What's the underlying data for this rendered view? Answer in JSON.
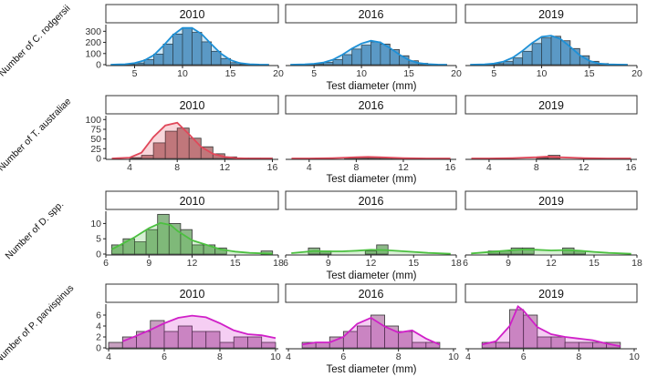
{
  "figure": {
    "xlabel": "Test diameter (mm)"
  },
  "chart_data": [
    {
      "type": "bar",
      "ylabel": "Number of C. rodgersii",
      "xlabel": "Test diameter (mm)",
      "xlim": [
        2,
        20
      ],
      "xticks": [
        5,
        10,
        15,
        20
      ],
      "ylim": [
        0,
        360
      ],
      "yticks": [
        0,
        100,
        200,
        300
      ],
      "color": "#1E90D6",
      "fill": "#6C9CC0",
      "bin_width": 1,
      "panels": [
        {
          "year": "2010",
          "bin_starts": [
            3,
            4,
            5,
            6,
            7,
            8,
            9,
            10,
            11,
            12,
            13,
            14,
            15,
            16,
            17,
            18
          ],
          "values": [
            2,
            5,
            15,
            45,
            95,
            185,
            275,
            330,
            290,
            205,
            120,
            55,
            18,
            6,
            2,
            1
          ],
          "density_x": [
            2.5,
            4,
            5,
            6,
            7,
            8,
            9,
            10,
            11,
            12,
            13,
            14,
            15,
            16,
            17,
            18,
            19
          ],
          "density_y": [
            0,
            4,
            14,
            38,
            85,
            170,
            265,
            330,
            330,
            275,
            185,
            100,
            42,
            14,
            4,
            1,
            0
          ]
        },
        {
          "year": "2016",
          "bin_starts": [
            3,
            4,
            5,
            6,
            7,
            8,
            9,
            10,
            11,
            12,
            13,
            14,
            15,
            16,
            17,
            18
          ],
          "values": [
            1,
            3,
            8,
            20,
            45,
            90,
            140,
            175,
            205,
            185,
            135,
            80,
            35,
            12,
            4,
            1
          ],
          "density_x": [
            2.5,
            4,
            5,
            6,
            7,
            8,
            9,
            10,
            11,
            12,
            13,
            14,
            15,
            16,
            17,
            18,
            19
          ],
          "density_y": [
            0,
            3,
            8,
            20,
            45,
            90,
            145,
            190,
            215,
            200,
            150,
            90,
            42,
            15,
            5,
            1,
            0
          ]
        },
        {
          "year": "2019",
          "bin_starts": [
            3,
            4,
            5,
            6,
            7,
            8,
            9,
            10,
            11,
            12,
            13,
            14,
            15,
            16,
            17,
            18
          ],
          "values": [
            1,
            3,
            10,
            28,
            60,
            120,
            190,
            240,
            255,
            215,
            145,
            80,
            30,
            10,
            3,
            1
          ],
          "density_x": [
            2.5,
            4,
            5,
            6,
            7,
            8,
            9,
            10,
            11,
            12,
            13,
            14,
            15,
            16,
            17,
            18,
            19
          ],
          "density_y": [
            0,
            3,
            10,
            28,
            65,
            125,
            195,
            250,
            260,
            230,
            160,
            85,
            35,
            10,
            3,
            1,
            0
          ]
        }
      ]
    },
    {
      "type": "bar",
      "ylabel": "Number of T. australiae",
      "xlabel": "Test diameter (mm)",
      "xlim": [
        2,
        16.5
      ],
      "xticks": [
        4,
        8,
        12,
        16
      ],
      "ylim": [
        0,
        110
      ],
      "yticks": [
        0,
        25,
        50,
        75,
        100
      ],
      "color": "#E0485A",
      "fill": "#B88585",
      "bin_width": 1,
      "panels": [
        {
          "year": "2010",
          "bin_starts": [
            4,
            5,
            6,
            7,
            8,
            9,
            10,
            11,
            12,
            13,
            14,
            15
          ],
          "values": [
            2,
            8,
            40,
            70,
            78,
            52,
            30,
            12,
            4,
            1,
            1,
            1
          ],
          "density_x": [
            2.5,
            4,
            5,
            6,
            7,
            8,
            9,
            10,
            11,
            12,
            13,
            14,
            15,
            16
          ],
          "density_y": [
            0,
            2,
            15,
            55,
            85,
            92,
            62,
            30,
            12,
            4,
            1,
            0,
            0,
            0
          ]
        },
        {
          "year": "2016",
          "bin_starts": [
            7,
            8,
            9,
            10,
            11
          ],
          "values": [
            1,
            2,
            2,
            2,
            1
          ],
          "density_x": [
            2.5,
            4,
            6,
            8,
            9,
            10,
            12,
            14,
            16
          ],
          "density_y": [
            0,
            0,
            1,
            3,
            4,
            3,
            1,
            0,
            0
          ]
        },
        {
          "year": "2019",
          "bin_starts": [
            8,
            9
          ],
          "values": [
            2,
            8
          ],
          "density_x": [
            2.5,
            4,
            6,
            8,
            9,
            10,
            12,
            14,
            16
          ],
          "density_y": [
            0,
            0,
            1,
            3,
            5,
            3,
            1,
            0,
            0
          ]
        }
      ]
    },
    {
      "type": "bar",
      "ylabel": "Number of D. spp.",
      "xlabel": "Test diameter (mm)",
      "xlim": [
        6,
        18
      ],
      "xticks": [
        6,
        9,
        12,
        15,
        18
      ],
      "ylim": [
        0,
        14
      ],
      "yticks": [
        0,
        5,
        10
      ],
      "color": "#4CC040",
      "fill": "#8DB889",
      "bin_width": 0.8,
      "panels": [
        {
          "year": "2010",
          "bin_starts": [
            6.4,
            7.2,
            8.0,
            8.8,
            9.6,
            10.4,
            11.2,
            12.0,
            12.8,
            13.6,
            14.4,
            15.2,
            16.0,
            16.8
          ],
          "values": [
            3,
            5,
            4,
            8,
            13,
            10,
            8,
            3,
            3,
            2,
            0,
            0,
            0,
            1
          ],
          "density_x": [
            6.4,
            7,
            8,
            9,
            9.8,
            10.5,
            11,
            12,
            13,
            14,
            15,
            16,
            17,
            17.6
          ],
          "density_y": [
            1.5,
            3,
            5.5,
            8.5,
            10.2,
            9.5,
            7.5,
            4.5,
            3,
            1.5,
            0.8,
            0.4,
            0.2,
            0.1
          ]
        },
        {
          "year": "2016",
          "bin_starts": [
            7.6,
            8.4,
            11.6,
            12.4
          ],
          "values": [
            2,
            1,
            1,
            3
          ],
          "density_x": [
            6.4,
            8,
            9,
            10,
            11,
            12,
            13,
            14,
            15,
            16,
            17,
            17.6
          ],
          "density_y": [
            0.3,
            1.0,
            0.9,
            0.9,
            1.1,
            1.4,
            1.3,
            1.0,
            0.7,
            0.4,
            0.2,
            0.1
          ]
        },
        {
          "year": "2019",
          "bin_starts": [
            7.6,
            8.4,
            9.2,
            10.0,
            12.8,
            13.6
          ],
          "values": [
            1,
            1,
            2,
            2,
            2,
            1
          ],
          "density_x": [
            6.4,
            8,
            9,
            10,
            11,
            12,
            13,
            14,
            15,
            16,
            17,
            17.6
          ],
          "density_y": [
            0.2,
            0.8,
            1.2,
            1.5,
            1.4,
            1.2,
            1.3,
            1.1,
            0.7,
            0.4,
            0.2,
            0.1
          ]
        }
      ]
    },
    {
      "type": "bar",
      "ylabel": "Number of P. parvispinus",
      "xlabel": "Test diameter (mm)",
      "xlim": [
        3.9,
        10.1
      ],
      "xticks": [
        4,
        6,
        8,
        10
      ],
      "ylim": [
        0,
        8
      ],
      "yticks": [
        0,
        2,
        4,
        6
      ],
      "color": "#D020C8",
      "fill": "#C8A0C0",
      "bin_width": 0.5,
      "panels": [
        {
          "year": "2010",
          "bin_starts": [
            4.0,
            4.5,
            5.0,
            5.5,
            6.0,
            6.5,
            7.0,
            7.5,
            8.0,
            8.5,
            9.0,
            9.5
          ],
          "values": [
            1,
            2,
            3,
            5,
            3,
            4,
            3,
            3,
            1,
            2,
            2,
            1
          ],
          "density_x": [
            4.5,
            5,
            5.5,
            6,
            6.5,
            7,
            7.5,
            8,
            8.5,
            9,
            9.5,
            10
          ],
          "density_y": [
            1.2,
            2.2,
            3.3,
            4.5,
            5.5,
            5.9,
            5.6,
            4.5,
            3.2,
            2.5,
            2.3,
            1.8
          ]
        },
        {
          "year": "2016",
          "bin_starts": [
            4.5,
            5.0,
            5.5,
            6.0,
            6.5,
            7.0,
            7.5,
            8.0,
            8.5,
            9.0
          ],
          "values": [
            1,
            1,
            2,
            3,
            4,
            6,
            4,
            3,
            1,
            1
          ],
          "density_x": [
            4.5,
            5,
            5.5,
            6,
            6.5,
            7,
            7.5,
            8,
            8.5,
            9,
            9.5
          ],
          "density_y": [
            0.6,
            1.0,
            1.0,
            2.0,
            4.4,
            5.5,
            3.9,
            2.8,
            3.2,
            1.7,
            0.6
          ]
        },
        {
          "year": "2019",
          "bin_starts": [
            4.5,
            5.0,
            5.5,
            6.0,
            6.5,
            7.0,
            7.5,
            8.0,
            8.5,
            9.0
          ],
          "values": [
            1,
            1,
            7,
            6,
            2,
            2,
            1,
            1,
            1,
            1
          ],
          "density_x": [
            4.5,
            5,
            5.5,
            5.8,
            6,
            6.5,
            7,
            7.5,
            8,
            8.5,
            9,
            9.5
          ],
          "density_y": [
            0.6,
            1.2,
            4.0,
            7.6,
            6.8,
            3.8,
            2.5,
            2.0,
            1.7,
            1.4,
            0.8,
            0.3
          ]
        }
      ]
    }
  ]
}
